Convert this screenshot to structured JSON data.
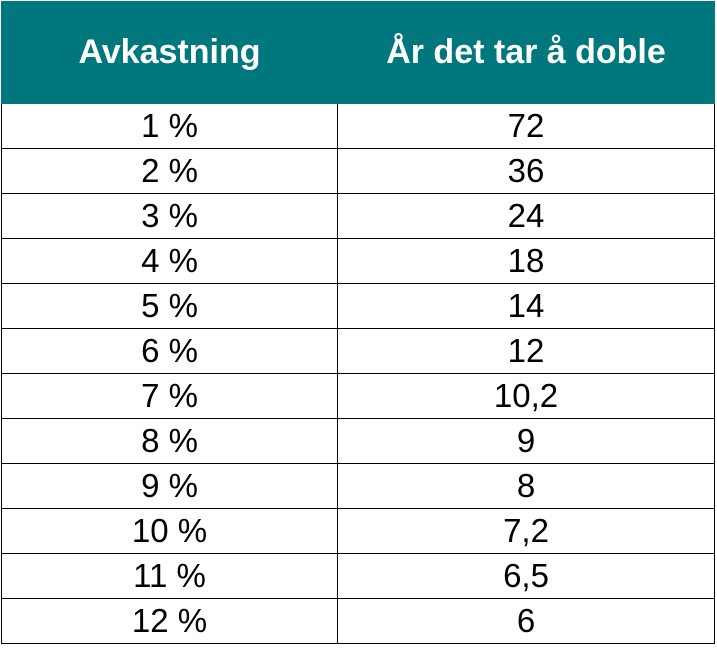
{
  "table": {
    "header": [
      "Avkastning",
      "År det tar å doble"
    ],
    "rows": [
      [
        "1 %",
        "72"
      ],
      [
        "2 %",
        "36"
      ],
      [
        "3 %",
        "24"
      ],
      [
        "4 %",
        "18"
      ],
      [
        "5 %",
        "14"
      ],
      [
        "6 %",
        "12"
      ],
      [
        "7 %",
        "10,2"
      ],
      [
        "8 %",
        "9"
      ],
      [
        "9 %",
        "8"
      ],
      [
        "10 %",
        "7,2"
      ],
      [
        "11 %",
        "6,5"
      ],
      [
        "12 %",
        "6"
      ]
    ]
  }
}
